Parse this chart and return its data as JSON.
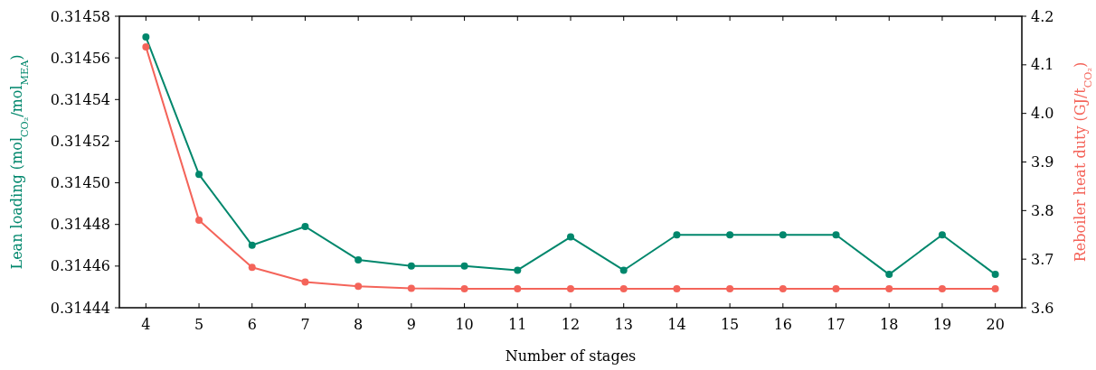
{
  "chart_data": {
    "type": "line",
    "xlabel": "Number of stages",
    "ylabel": "Lean loading (mol$_{CO₂}$/mol$_{MEA}$)",
    "y2label": "Reboiler heat duty (GJ/t$_{CO₂}$)",
    "x": [
      4,
      5,
      6,
      7,
      8,
      9,
      10,
      11,
      12,
      13,
      14,
      15,
      16,
      17,
      18,
      19,
      20
    ],
    "xlim": [
      3.5,
      20.5
    ],
    "xticks": [
      4,
      5,
      6,
      7,
      8,
      9,
      10,
      11,
      12,
      13,
      14,
      15,
      16,
      17,
      18,
      19,
      20
    ],
    "ylim": [
      0.31444,
      0.31458
    ],
    "yticks": [
      0.31444,
      0.31446,
      0.31448,
      {
        "value": 0.3145,
        "label": "0.31450"
      },
      0.31452,
      0.31454,
      0.31456,
      0.31458
    ],
    "y2lim": [
      3.6,
      4.2
    ],
    "y2ticks": [
      3.6,
      3.7,
      3.8,
      3.9,
      {
        "value": 4,
        "label": "4.0"
      },
      4.1,
      4.2
    ],
    "marker": "circle",
    "line_style": "solid",
    "grid": false,
    "series": [
      {
        "color": "#00876c",
        "values": [
          0.31457,
          0.314504,
          0.31447,
          0.314479,
          0.314463,
          0.31446,
          0.31446,
          0.314458,
          0.314474,
          0.314458,
          0.314475,
          0.314475,
          0.314475,
          0.314475,
          0.314456,
          0.314475,
          0.314456
        ]
      },
      {
        "color": "#f4645a",
        "axis": "y2",
        "values": [
          4.137,
          3.78,
          3.683,
          3.653,
          3.644,
          3.64,
          3.639,
          3.639,
          3.639,
          3.639,
          3.639,
          3.639,
          3.639,
          3.639,
          3.639,
          3.639,
          3.639
        ]
      }
    ]
  }
}
